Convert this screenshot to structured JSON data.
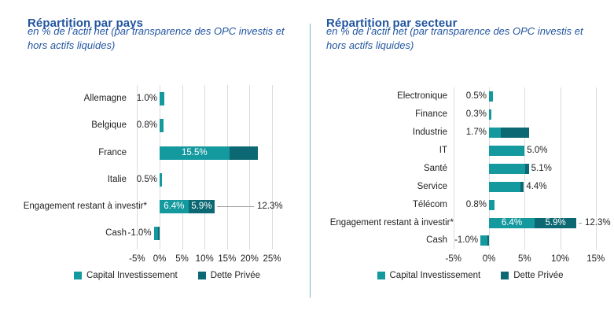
{
  "colors": {
    "capital_investissement": "#14999f",
    "dette_privee": "#0c6872",
    "title_blue": "#2255a0",
    "text": "#1f1f1f",
    "gridline": "#dcdcdc",
    "connector": "#9d9d9d",
    "divider": "#79b6bc",
    "background": "#ffffff",
    "inside_label": "#ffffff"
  },
  "legend": {
    "items": [
      "Capital Investissement",
      "Dette Privée"
    ]
  },
  "chart_data": [
    {
      "type": "bar",
      "orientation": "horizontal",
      "stacked": true,
      "grid": "vertical-only",
      "legend_position": "bottom",
      "title": "Répartition par pays",
      "subtitle_line1": "en % de l’actif net (par transparence des OPC investis et",
      "subtitle_line2": "hors actifs liquides)",
      "xlim": [
        -5,
        25
      ],
      "x_ticks": [
        -5,
        0,
        5,
        10,
        15,
        20,
        25
      ],
      "x_tick_labels": [
        "-5%",
        "0%",
        "5%",
        "10%",
        "15%",
        "20%",
        "25%"
      ],
      "categories": [
        "Allemagne",
        "Belgique",
        "France",
        "Italie",
        "Engagement restant à investir*",
        "Cash"
      ],
      "series": [
        {
          "name": "Capital Investissement",
          "values": [
            1.0,
            0.8,
            15.5,
            0.5,
            6.4,
            -1.0
          ]
        },
        {
          "name": "Dette Privée",
          "values": [
            0,
            0,
            6.3,
            0,
            5.9,
            -0.3
          ]
        }
      ],
      "data_labels": [
        {
          "position": "left",
          "text": "1.0%"
        },
        {
          "position": "left",
          "text": "0.8%"
        },
        {
          "position": "inside-ci",
          "text": "15.5%"
        },
        {
          "position": "left",
          "text": "0.5%"
        },
        {
          "position": "inside-with-callout",
          "ci": "6.4%",
          "dp": "5.9%",
          "total": "12.3%"
        },
        {
          "position": "left",
          "text": "-1.0%"
        }
      ]
    },
    {
      "type": "bar",
      "orientation": "horizontal",
      "stacked": true,
      "grid": "vertical-only",
      "legend_position": "bottom",
      "title": "Répartition par secteur",
      "subtitle_line1": "en % de l’actif net (par transparence des OPC investis et",
      "subtitle_line2": "hors actifs liquides)",
      "xlim": [
        -5,
        15
      ],
      "x_ticks": [
        -5,
        0,
        5,
        10,
        15
      ],
      "x_tick_labels": [
        "-5%",
        "0%",
        "5%",
        "10%",
        "15%"
      ],
      "categories": [
        "Electronique",
        "Finance",
        "Industrie",
        "IT",
        "Santé",
        "Service",
        "Télécom",
        "Engagement restant à investir*",
        "Cash"
      ],
      "series": [
        {
          "name": "Capital Investissement",
          "values": [
            0.5,
            0.3,
            1.7,
            5.0,
            5.1,
            4.4,
            0.8,
            6.4,
            -1.0
          ]
        },
        {
          "name": "Dette Privée",
          "values": [
            0,
            0,
            3.9,
            0,
            0.5,
            0.5,
            0,
            5.9,
            -0.2
          ]
        }
      ],
      "data_labels": [
        {
          "position": "left",
          "text": "0.5%"
        },
        {
          "position": "left",
          "text": "0.3%"
        },
        {
          "position": "left",
          "text": "1.7%"
        },
        {
          "position": "right",
          "text": "5.0%"
        },
        {
          "position": "right",
          "text": "5.1%"
        },
        {
          "position": "right",
          "text": "4.4%"
        },
        {
          "position": "left",
          "text": "0.8%"
        },
        {
          "position": "inside-with-callout",
          "ci": "6.4%",
          "dp": "5.9%",
          "total": "12.3%"
        },
        {
          "position": "left",
          "text": "-1.0%"
        }
      ]
    }
  ]
}
